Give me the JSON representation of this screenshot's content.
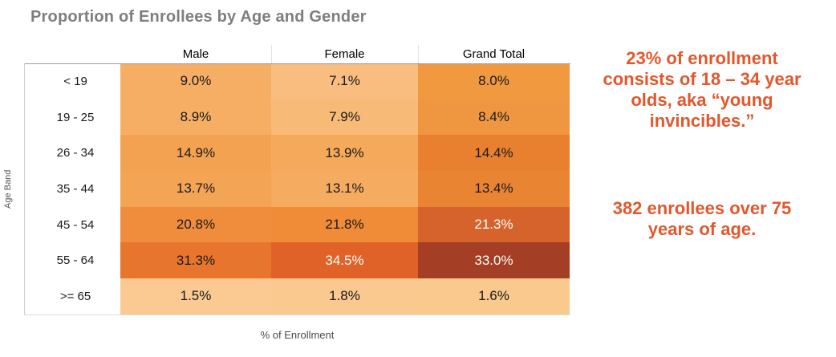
{
  "title": "Proportion of Enrollees by Age and Gender",
  "colors": {
    "annotation": "#e2572b",
    "title_gray": "#7e7e7e",
    "dark_text": "#1a1a1a",
    "light_text": "#ffffff"
  },
  "table": {
    "row_axis_label": "Age Band",
    "caption": "% of Enrollment",
    "columns": [
      "Male",
      "Female",
      "Grand Total"
    ],
    "rows": [
      {
        "label": "< 19",
        "cells": [
          {
            "value": "9.0%",
            "bg": "#f6ae64",
            "fg": "#1a1a1a"
          },
          {
            "value": "7.1%",
            "bg": "#f8bd7f",
            "fg": "#1a1a1a"
          },
          {
            "value": "8.0%",
            "bg": "#f0993f",
            "fg": "#1a1a1a"
          }
        ]
      },
      {
        "label": "19 - 25",
        "cells": [
          {
            "value": "8.9%",
            "bg": "#f6ae64",
            "fg": "#1a1a1a"
          },
          {
            "value": "7.9%",
            "bg": "#f7ba77",
            "fg": "#1a1a1a"
          },
          {
            "value": "8.4%",
            "bg": "#ef9740",
            "fg": "#1a1a1a"
          }
        ]
      },
      {
        "label": "26 - 34",
        "cells": [
          {
            "value": "14.9%",
            "bg": "#f3a251",
            "fg": "#1a1a1a"
          },
          {
            "value": "13.9%",
            "bg": "#f5aa5b",
            "fg": "#1a1a1a"
          },
          {
            "value": "14.4%",
            "bg": "#e8802f",
            "fg": "#1a1a1a"
          }
        ]
      },
      {
        "label": "35 - 44",
        "cells": [
          {
            "value": "13.7%",
            "bg": "#f3a455",
            "fg": "#1a1a1a"
          },
          {
            "value": "13.1%",
            "bg": "#f5ac60",
            "fg": "#1a1a1a"
          },
          {
            "value": "13.4%",
            "bg": "#e98433",
            "fg": "#1a1a1a"
          }
        ]
      },
      {
        "label": "45 - 54",
        "cells": [
          {
            "value": "20.8%",
            "bg": "#ef8d3c",
            "fg": "#1a1a1a"
          },
          {
            "value": "21.8%",
            "bg": "#f08b37",
            "fg": "#1a1a1a"
          },
          {
            "value": "21.3%",
            "bg": "#d6632b",
            "fg": "#ffffff"
          }
        ]
      },
      {
        "label": "55 - 64",
        "cells": [
          {
            "value": "31.3%",
            "bg": "#e8752d",
            "fg": "#1a1a1a"
          },
          {
            "value": "34.5%",
            "bg": "#e16228",
            "fg": "#ffffff"
          },
          {
            "value": "33.0%",
            "bg": "#a43e25",
            "fg": "#ffffff"
          }
        ]
      },
      {
        "label": ">= 65",
        "cells": [
          {
            "value": "1.5%",
            "bg": "#faca92",
            "fg": "#1a1a1a"
          },
          {
            "value": "1.8%",
            "bg": "#fac98f",
            "fg": "#1a1a1a"
          },
          {
            "value": "1.6%",
            "bg": "#f9c98e",
            "fg": "#1a1a1a"
          }
        ]
      }
    ]
  },
  "annotations": [
    {
      "lines": [
        "23% of enrollment",
        "consists of 18 – 34 year",
        "olds, aka “young",
        "invincibles.”"
      ]
    },
    {
      "lines": [
        "382 enrollees over 75",
        "years of age."
      ]
    }
  ],
  "chart_data": {
    "type": "heatmap",
    "title": "Proportion of Enrollees by Age and Gender",
    "xlabel": "% of Enrollment",
    "ylabel": "Age Band",
    "categories": [
      "< 19",
      "19 - 25",
      "26 - 34",
      "35 - 44",
      "45 - 54",
      "55 - 64",
      ">= 65"
    ],
    "series": [
      {
        "name": "Male",
        "values": [
          9.0,
          8.9,
          14.9,
          13.7,
          20.8,
          31.3,
          1.5
        ]
      },
      {
        "name": "Female",
        "values": [
          7.1,
          7.9,
          13.9,
          13.1,
          21.8,
          34.5,
          1.8
        ]
      },
      {
        "name": "Grand Total",
        "values": [
          8.0,
          8.4,
          14.4,
          13.4,
          21.3,
          33.0,
          1.6
        ]
      }
    ],
    "units": "percent",
    "legend": "none",
    "palette": "orange sequential (light = low, dark brown = high)"
  }
}
